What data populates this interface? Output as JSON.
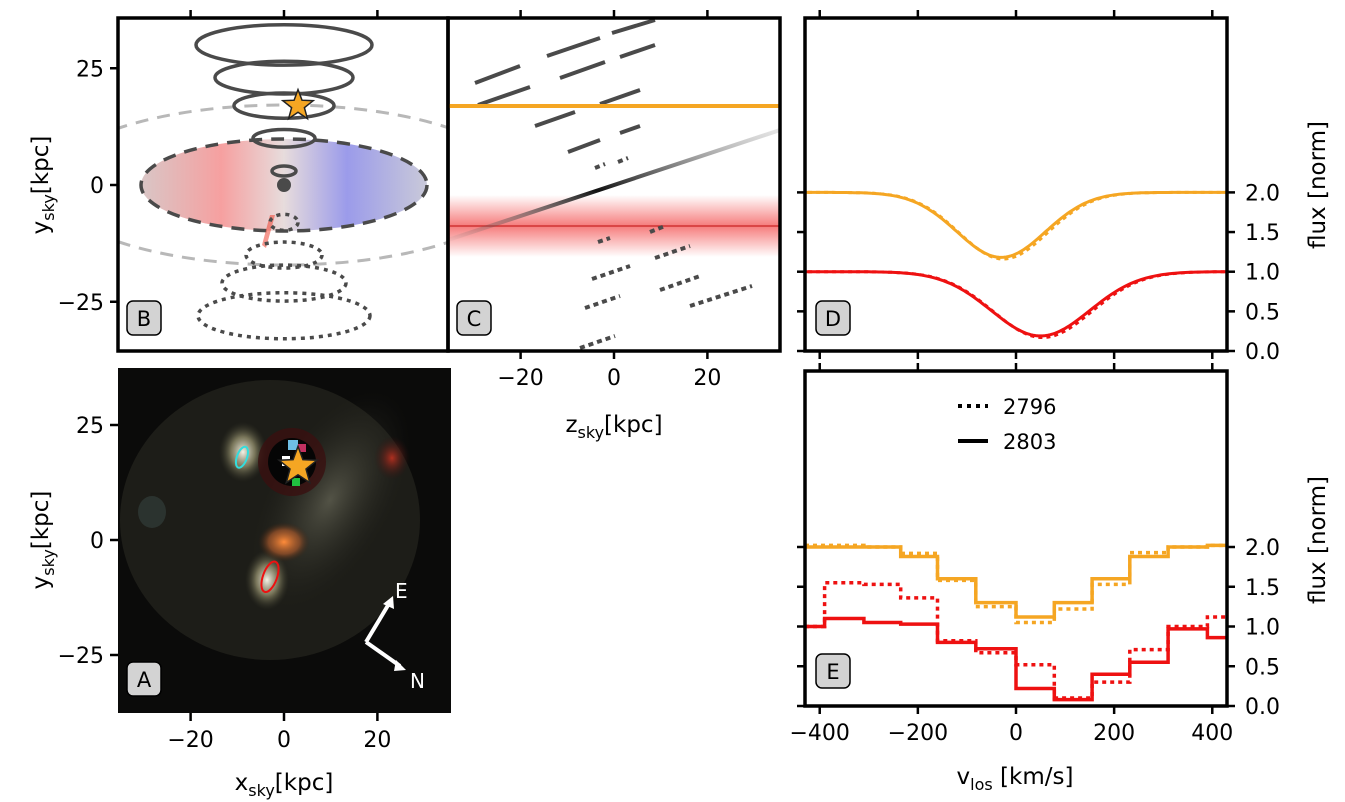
{
  "colors": {
    "orange": "#f5a623",
    "red": "#ee1111",
    "dark": "#4a4a4a",
    "light_gray": "#b8b8b8",
    "disk_red": "#f2a6a6",
    "disk_blue": "#9a9ae8",
    "cyan": "#33dddd"
  },
  "panels": {
    "A": {
      "tag": "A",
      "xlabel": "x",
      "xlabel_sub": "sky",
      "xlabel_unit": "[kpc]",
      "ylabel": "y",
      "ylabel_sub": "sky",
      "ylabel_unit": "[kpc]",
      "compass": {
        "e": "E",
        "n": "N"
      }
    },
    "B": {
      "tag": "B",
      "ylabel": "y",
      "ylabel_sub": "sky",
      "ylabel_unit": "[kpc]"
    },
    "C": {
      "tag": "C",
      "xlabel": "z",
      "xlabel_sub": "sky",
      "xlabel_unit": "[kpc]"
    },
    "D": {
      "tag": "D",
      "ylabel": "flux [norm]"
    },
    "E": {
      "tag": "E",
      "xlabel": "v",
      "xlabel_sub": "los",
      "xlabel_unit": " [km/s]",
      "ylabel": "flux [norm]",
      "legend": [
        "2796",
        "2803"
      ]
    }
  },
  "chart_data": [
    {
      "panel": "A",
      "type": "scatter",
      "description": "",
      "xlim": [
        -36,
        36
      ],
      "ylim": [
        -35,
        35
      ],
      "xticks": [
        -20,
        0,
        20
      ],
      "yticks": [
        -25,
        0,
        25
      ],
      "markers": [
        {
          "kind": "star",
          "x": 3,
          "y": 16,
          "color": "#f5a623"
        },
        {
          "kind": "ellipse",
          "x": -9,
          "y": 18,
          "color": "#33dddd"
        },
        {
          "kind": "ellipse",
          "x": -3,
          "y": -8,
          "color": "#ee1111"
        }
      ]
    },
    {
      "panel": "B",
      "type": "scatter",
      "xlim": [
        -36,
        36
      ],
      "ylim": [
        -35,
        35
      ],
      "yticks": [
        -25,
        0,
        25
      ],
      "star": {
        "x": 3,
        "y": 17
      },
      "disk": {
        "x": 0,
        "y": 0,
        "rx": 31,
        "ry": 10
      },
      "cone_rings_above": [
        {
          "y": 3
        },
        {
          "y": 10
        },
        {
          "y": 17
        },
        {
          "y": 23
        },
        {
          "y": 30
        }
      ],
      "cone_rings_below": [
        {
          "y": -8
        },
        {
          "y": -15
        },
        {
          "y": -21
        },
        {
          "y": -28
        }
      ]
    },
    {
      "panel": "C",
      "type": "line",
      "xlim": [
        -36,
        36
      ],
      "ylim": [
        -35,
        35
      ],
      "xticks": [
        -20,
        0,
        20
      ],
      "sightline_orange_y": 17,
      "sightline_red_y": -8
    },
    {
      "panel": "D",
      "type": "line",
      "xlim": [
        -430,
        430
      ],
      "ylim": [
        0,
        2.1
      ],
      "yticks": [
        0.0,
        0.5,
        1.0,
        1.5,
        2.0
      ],
      "ytick_labels": [
        "0.0",
        "0.5",
        "1.0",
        "1.5",
        "2.0"
      ],
      "series": [
        {
          "color": "orange",
          "offset": 1.0,
          "center": -30,
          "depth": 0.82,
          "sigma": 90
        },
        {
          "color": "red",
          "offset": 0.0,
          "center": 50,
          "depth": 0.81,
          "sigma": 100
        }
      ]
    },
    {
      "panel": "E",
      "type": "line",
      "xlim": [
        -430,
        430
      ],
      "ylim": [
        0,
        2.1
      ],
      "xticks": [
        -400,
        -200,
        0,
        200,
        400
      ],
      "xtick_labels": [
        "−400",
        "−200",
        "0",
        "200",
        "400"
      ],
      "yticks": [
        0.0,
        0.5,
        1.0,
        1.5,
        2.0
      ],
      "ytick_labels": [
        "0.0",
        "0.5",
        "1.0",
        "1.5",
        "2.0"
      ],
      "bin_edges": [
        -430,
        -390,
        -310,
        -235,
        -160,
        -82,
        0,
        78,
        155,
        232,
        310,
        390,
        430
      ],
      "series": [
        {
          "name": "2803",
          "color": "orange",
          "style": "solid",
          "values": [
            2.0,
            2.0,
            2.0,
            1.88,
            1.6,
            1.3,
            1.12,
            1.3,
            1.6,
            1.88,
            2.0,
            2.02
          ]
        },
        {
          "name": "2796",
          "color": "orange",
          "style": "dotted",
          "values": [
            2.02,
            2.02,
            2.0,
            1.92,
            1.58,
            1.25,
            1.05,
            1.22,
            1.53,
            1.93,
            2.0,
            2.02
          ]
        },
        {
          "name": "2803",
          "color": "red",
          "style": "solid",
          "values": [
            1.0,
            1.1,
            1.05,
            1.03,
            0.8,
            0.72,
            0.22,
            0.08,
            0.4,
            0.55,
            0.97,
            0.86
          ]
        },
        {
          "name": "2796",
          "color": "red",
          "style": "dotted",
          "values": [
            1.0,
            1.55,
            1.53,
            1.36,
            0.82,
            0.67,
            0.52,
            0.1,
            0.3,
            0.71,
            1.0,
            1.12
          ]
        }
      ]
    }
  ]
}
